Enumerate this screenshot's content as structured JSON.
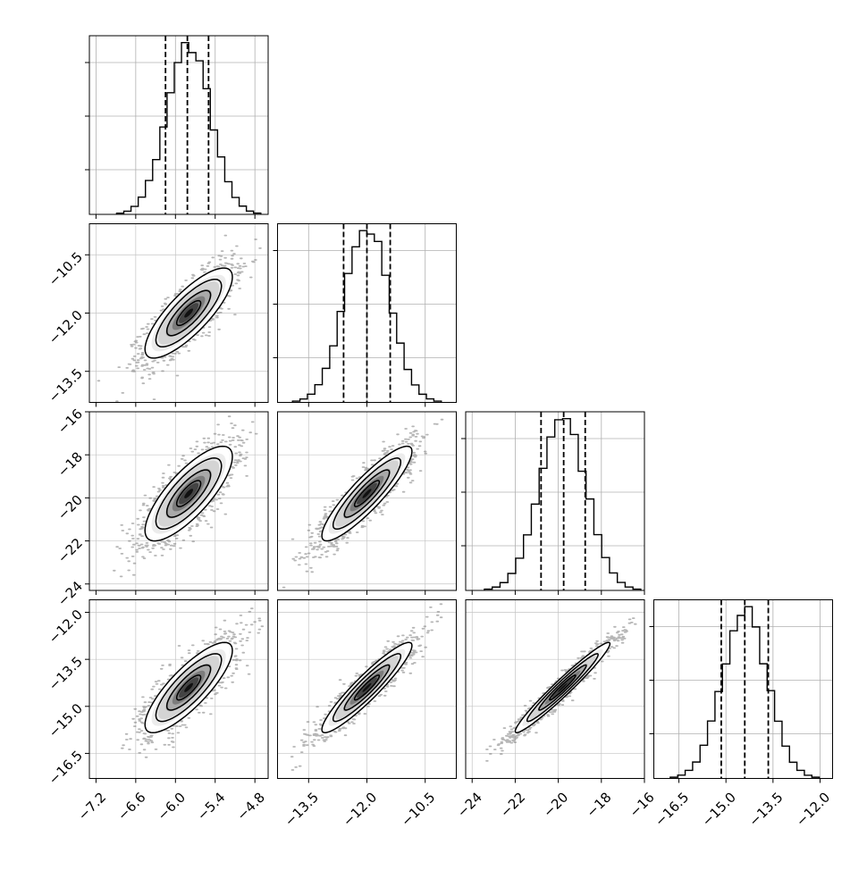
{
  "chart_data": {
    "type": "scatter",
    "title": "",
    "kind": "corner plot",
    "parameters": [
      {
        "index": 0,
        "range": [
          -7.3,
          -4.6
        ],
        "ticks": [
          -7.2,
          -6.6,
          -6.0,
          -5.4,
          -4.8
        ],
        "tick_labels": [
          "−7.2",
          "−6.6",
          "−6.0",
          "−5.4",
          "−4.8"
        ],
        "mean": -5.8,
        "sd": 0.33,
        "quantiles": [
          -6.15,
          -5.82,
          -5.5
        ]
      },
      {
        "index": 1,
        "range": [
          -14.3,
          -9.7
        ],
        "ticks": [
          -13.5,
          -12.0,
          -10.5
        ],
        "tick_labels": [
          "−13.5",
          "−12.0",
          "−10.5"
        ],
        "mean": -12.0,
        "sd": 0.58,
        "quantiles": [
          -12.6,
          -12.0,
          -11.4
        ]
      },
      {
        "index": 2,
        "range": [
          -24.3,
          -16.0
        ],
        "ticks": [
          -24,
          -22,
          -20,
          -18,
          -16
        ],
        "tick_labels": [
          "−24",
          "−22",
          "−20",
          "−18",
          "−16"
        ],
        "mean": -19.8,
        "sd": 1.1,
        "quantiles": [
          -20.8,
          -19.75,
          -18.75
        ]
      },
      {
        "index": 3,
        "range": [
          -17.3,
          -11.6
        ],
        "ticks": [
          -16.5,
          -15.0,
          -13.5,
          -12.0
        ],
        "tick_labels": [
          "−16.5",
          "−15.0",
          "−13.5",
          "−12.0"
        ],
        "mean": -14.4,
        "sd": 0.72,
        "quantiles": [
          -15.15,
          -14.4,
          -13.65
        ]
      }
    ],
    "correlations": [
      [
        0,
        1,
        0.8
      ],
      [
        0,
        2,
        0.78
      ],
      [
        0,
        3,
        0.82
      ],
      [
        1,
        2,
        0.89
      ],
      [
        1,
        3,
        0.93
      ],
      [
        2,
        3,
        0.97
      ]
    ],
    "histogram_bins": 20,
    "contour_levels": [
      "0.5 sigma",
      "1 sigma",
      "1.5 sigma",
      "2 sigma"
    ],
    "grid": true,
    "xlabel": "",
    "ylabel": ""
  }
}
